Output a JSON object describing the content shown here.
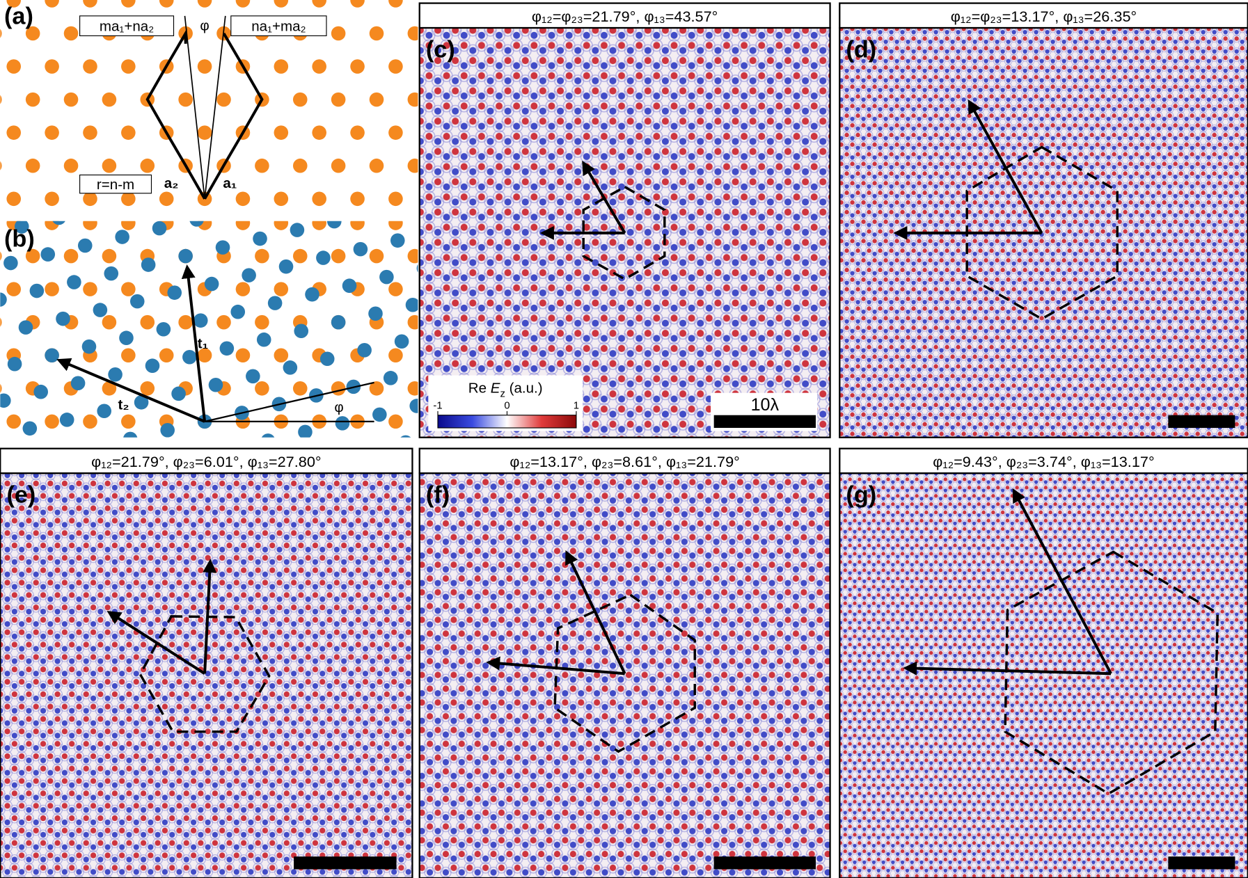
{
  "panel_a": {
    "label": "(a)",
    "box_left": "ma₁+na₂",
    "phi": "φ",
    "box_right": "na₁+ma₂",
    "box_r": "r=n-m",
    "a2": "a₂",
    "a1": "a₁"
  },
  "panel_b": {
    "label": "(b)",
    "t1": "t₁",
    "t2": "t₂",
    "phi": "φ"
  },
  "panels": [
    {
      "label": "(c)",
      "title": "φ₁₂=φ₂₃=21.79°, φ₁₃=43.57°"
    },
    {
      "label": "(d)",
      "title": "φ₁₂=φ₂₃=13.17°, φ₁₃=26.35°"
    },
    {
      "label": "(e)",
      "title": "φ₁₂=21.79°, φ₂₃=6.01°, φ₁₃=27.80°"
    },
    {
      "label": "(f)",
      "title": "φ₁₂=13.17°, φ₂₃=8.61°, φ₁₃=21.79°"
    },
    {
      "label": "(g)",
      "title": "φ₁₂=9.43°, φ₂₃=3.74°, φ₁₃=13.17°"
    }
  ],
  "colorbar": {
    "prefix": "Re ",
    "var": "E",
    "sub": "z",
    "suffix": " (a.u.)",
    "ticks": [
      "-1",
      "0",
      "1"
    ]
  },
  "scale_bar": "10λ"
}
